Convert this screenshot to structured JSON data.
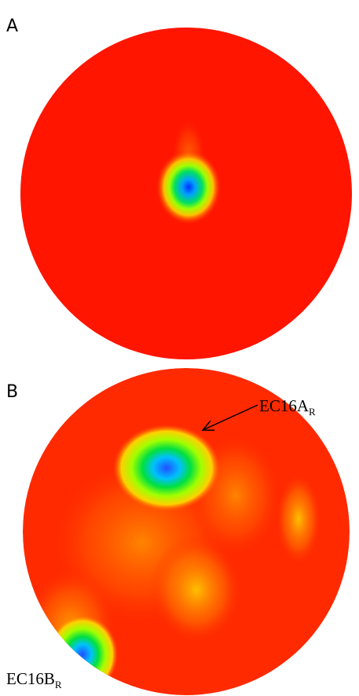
{
  "panels": [
    {
      "label": "A"
    },
    {
      "label": "B",
      "annotations": [
        {
          "text": "EC16A",
          "subscript": "R"
        },
        {
          "text": "EC16B",
          "subscript": "R"
        }
      ]
    }
  ]
}
